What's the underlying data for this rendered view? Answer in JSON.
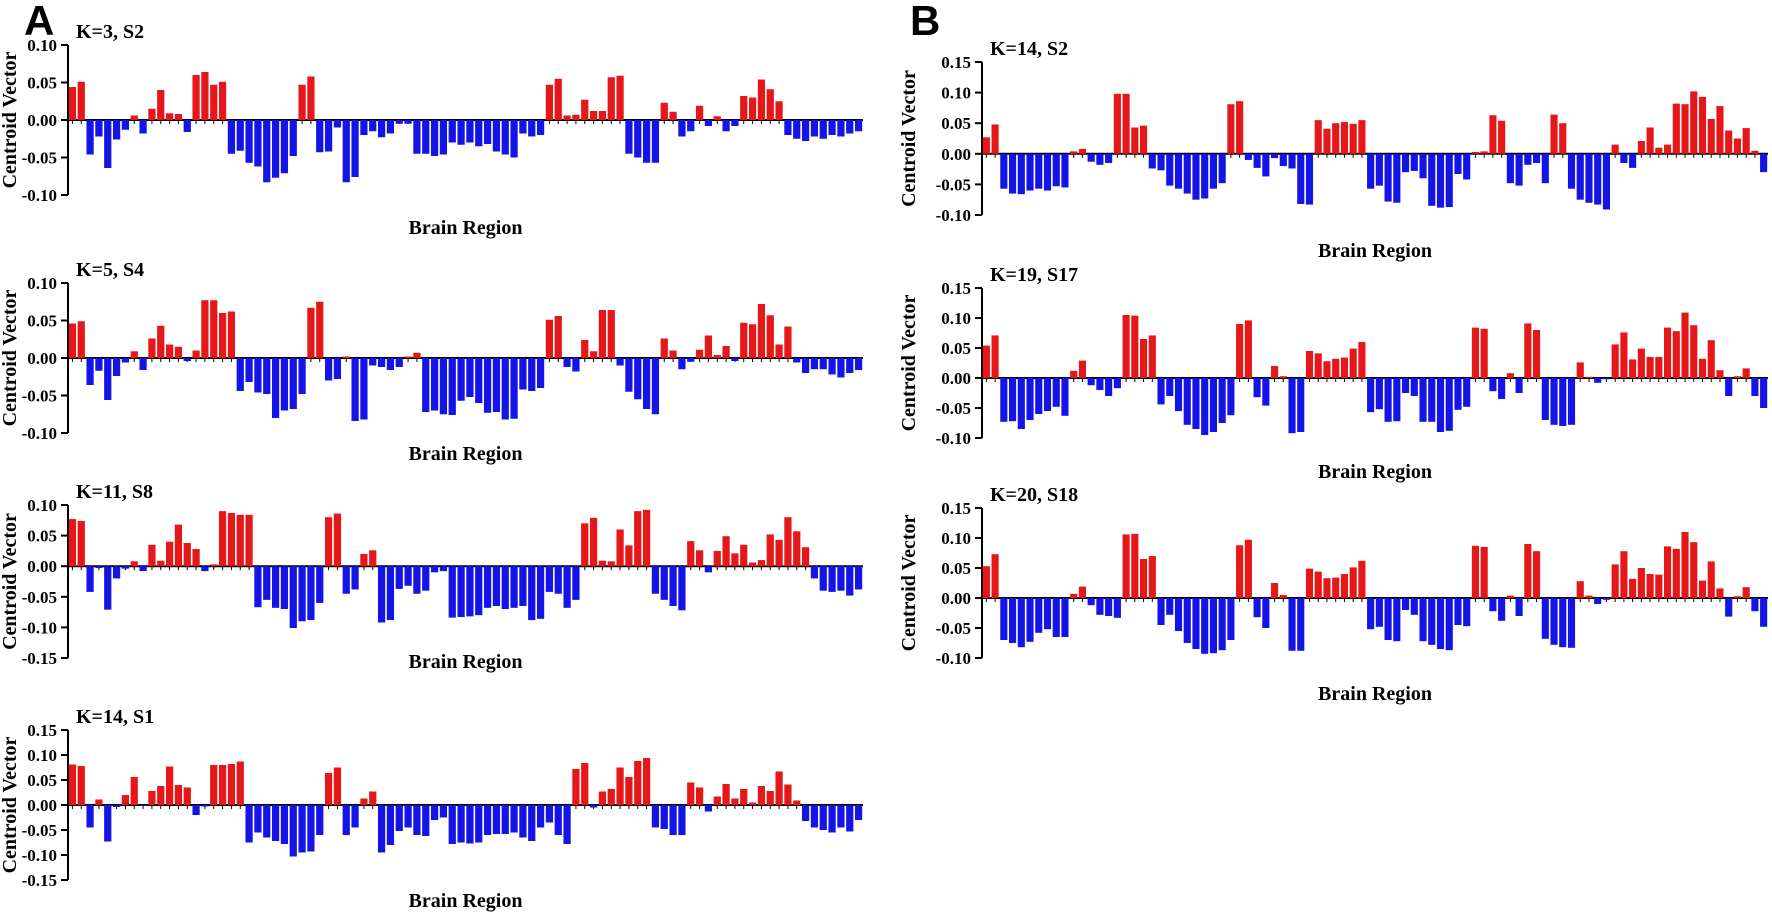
{
  "figure": {
    "panels": [
      {
        "label": "A"
      },
      {
        "label": "B"
      }
    ],
    "colors": {
      "positive_bar": "#e61719",
      "negative_bar": "#1414e6",
      "axis": "#000000",
      "background": "#ffffff"
    }
  },
  "chart_data": [
    {
      "type": "bar",
      "panel": "A",
      "title": "K=3, S2",
      "xlabel": "Brain Region",
      "ylabel": "Centroid Vector",
      "ylim": [
        -0.1,
        0.1
      ],
      "yticks": [
        0.1,
        0.05,
        0.0,
        -0.05,
        -0.1
      ],
      "n_regions": 90,
      "grid": false,
      "legend": false,
      "values": [
        0.044,
        0.051,
        -0.046,
        -0.022,
        -0.064,
        -0.026,
        -0.013,
        0.006,
        -0.018,
        0.015,
        0.04,
        0.009,
        0.008,
        -0.016,
        0.06,
        0.064,
        0.047,
        0.051,
        -0.045,
        -0.041,
        -0.057,
        -0.062,
        -0.083,
        -0.077,
        -0.071,
        -0.048,
        0.047,
        0.058,
        -0.043,
        -0.042,
        -0.01,
        -0.083,
        -0.076,
        -0.02,
        -0.015,
        -0.023,
        -0.018,
        -0.005,
        -0.005,
        -0.045,
        -0.045,
        -0.048,
        -0.046,
        -0.03,
        -0.033,
        -0.03,
        -0.035,
        -0.032,
        -0.042,
        -0.046,
        -0.05,
        -0.018,
        -0.022,
        -0.02,
        0.047,
        0.055,
        0.006,
        0.007,
        0.027,
        0.012,
        0.012,
        0.057,
        0.059,
        -0.045,
        -0.05,
        -0.057,
        -0.057,
        0.023,
        0.011,
        -0.022,
        -0.015,
        0.019,
        -0.008,
        0.005,
        -0.015,
        -0.008,
        0.032,
        0.03,
        0.054,
        0.041,
        0.025,
        -0.02,
        -0.025,
        -0.028,
        -0.022,
        -0.025,
        -0.02,
        -0.022,
        -0.018,
        -0.015
      ]
    },
    {
      "type": "bar",
      "panel": "A",
      "title": "K=5, S4",
      "xlabel": "Brain Region",
      "ylabel": "Centroid Vector",
      "ylim": [
        -0.1,
        0.1
      ],
      "yticks": [
        0.1,
        0.05,
        0.0,
        -0.05,
        -0.1
      ],
      "n_regions": 90,
      "grid": false,
      "legend": false,
      "values": [
        0.046,
        0.049,
        -0.036,
        -0.017,
        -0.056,
        -0.024,
        -0.006,
        0.009,
        -0.016,
        0.026,
        0.043,
        0.018,
        0.015,
        -0.004,
        0.01,
        0.077,
        0.077,
        0.06,
        0.062,
        -0.044,
        -0.032,
        -0.046,
        -0.048,
        -0.08,
        -0.07,
        -0.068,
        -0.048,
        0.067,
        0.075,
        -0.03,
        -0.028,
        0.002,
        -0.084,
        -0.082,
        -0.01,
        -0.012,
        -0.016,
        -0.012,
        0.002,
        0.007,
        -0.072,
        -0.07,
        -0.075,
        -0.076,
        -0.057,
        -0.052,
        -0.06,
        -0.073,
        -0.072,
        -0.082,
        -0.081,
        -0.042,
        -0.044,
        -0.04,
        0.051,
        0.056,
        -0.012,
        -0.018,
        0.024,
        0.009,
        0.064,
        0.064,
        -0.01,
        -0.045,
        -0.055,
        -0.068,
        -0.075,
        0.026,
        0.01,
        -0.015,
        -0.005,
        0.011,
        0.03,
        0.004,
        0.016,
        -0.004,
        0.047,
        0.045,
        0.072,
        0.057,
        0.018,
        0.042,
        -0.006,
        -0.02,
        -0.015,
        -0.015,
        -0.022,
        -0.026,
        -0.02,
        -0.016
      ]
    },
    {
      "type": "bar",
      "panel": "A",
      "title": "K=11, S8",
      "xlabel": "Brain Region",
      "ylabel": "Centroid Vector",
      "ylim": [
        -0.15,
        0.1
      ],
      "yticks": [
        0.1,
        0.05,
        0.0,
        -0.05,
        -0.1,
        -0.15
      ],
      "n_regions": 90,
      "grid": false,
      "legend": false,
      "values": [
        0.077,
        0.074,
        -0.042,
        -0.003,
        -0.071,
        -0.02,
        -0.004,
        0.008,
        -0.008,
        0.035,
        0.009,
        0.04,
        0.068,
        0.038,
        0.028,
        -0.008,
        0.003,
        0.09,
        0.087,
        0.084,
        0.084,
        -0.067,
        -0.055,
        -0.068,
        -0.07,
        -0.101,
        -0.09,
        -0.088,
        -0.06,
        0.08,
        0.086,
        -0.045,
        -0.038,
        0.02,
        0.026,
        -0.092,
        -0.088,
        -0.037,
        -0.032,
        -0.045,
        -0.04,
        -0.01,
        -0.008,
        -0.084,
        -0.083,
        -0.082,
        -0.08,
        -0.068,
        -0.065,
        -0.07,
        -0.068,
        -0.065,
        -0.088,
        -0.086,
        -0.042,
        -0.045,
        -0.068,
        -0.055,
        0.07,
        0.079,
        0.009,
        0.008,
        0.06,
        0.034,
        0.09,
        0.092,
        -0.045,
        -0.055,
        -0.065,
        -0.072,
        0.041,
        0.026,
        -0.01,
        0.025,
        0.049,
        0.021,
        0.035,
        0.006,
        0.01,
        0.052,
        0.043,
        0.08,
        0.057,
        0.031,
        -0.02,
        -0.04,
        -0.042,
        -0.04,
        -0.048,
        -0.038
      ]
    },
    {
      "type": "bar",
      "panel": "A",
      "title": "K=14, S1",
      "xlabel": "Brain Region",
      "ylabel": "Centroid Vector",
      "ylim": [
        -0.15,
        0.15
      ],
      "yticks": [
        0.15,
        0.1,
        0.05,
        0.0,
        -0.05,
        -0.1,
        -0.15
      ],
      "n_regions": 90,
      "grid": false,
      "legend": false,
      "values": [
        0.081,
        0.078,
        -0.045,
        0.011,
        -0.073,
        -0.004,
        0.02,
        0.056,
        -0.002,
        0.028,
        0.038,
        0.077,
        0.04,
        0.035,
        -0.02,
        -0.003,
        0.08,
        0.08,
        0.082,
        0.087,
        -0.075,
        -0.055,
        -0.065,
        -0.072,
        -0.078,
        -0.103,
        -0.095,
        -0.093,
        -0.06,
        0.064,
        0.075,
        -0.06,
        -0.045,
        0.013,
        0.027,
        -0.095,
        -0.08,
        -0.052,
        -0.045,
        -0.06,
        -0.062,
        -0.03,
        -0.025,
        -0.078,
        -0.075,
        -0.077,
        -0.075,
        -0.06,
        -0.058,
        -0.058,
        -0.055,
        -0.065,
        -0.072,
        -0.045,
        -0.035,
        -0.06,
        -0.078,
        0.072,
        0.084,
        -0.005,
        0.027,
        0.032,
        0.075,
        0.056,
        0.088,
        0.094,
        -0.045,
        -0.048,
        -0.06,
        -0.06,
        0.045,
        0.035,
        -0.013,
        0.017,
        0.042,
        0.013,
        0.032,
        0.005,
        0.038,
        0.028,
        0.067,
        0.041,
        0.009,
        -0.032,
        -0.045,
        -0.05,
        -0.055,
        -0.045,
        -0.053,
        -0.03
      ]
    },
    {
      "type": "bar",
      "panel": "B",
      "title": "K=14, S2",
      "xlabel": "Brain Region",
      "ylabel": "Centroid Vector",
      "ylim": [
        -0.1,
        0.15
      ],
      "yticks": [
        0.15,
        0.1,
        0.05,
        0.0,
        -0.05,
        -0.1
      ],
      "n_regions": 90,
      "grid": false,
      "legend": false,
      "values": [
        0.027,
        0.048,
        -0.057,
        -0.065,
        -0.066,
        -0.06,
        -0.057,
        -0.06,
        -0.053,
        -0.055,
        0.004,
        0.008,
        -0.013,
        -0.018,
        -0.015,
        0.098,
        0.098,
        0.043,
        0.046,
        -0.024,
        -0.027,
        -0.052,
        -0.057,
        -0.065,
        -0.075,
        -0.073,
        -0.057,
        -0.048,
        0.081,
        0.086,
        -0.01,
        -0.023,
        -0.037,
        -0.007,
        -0.02,
        -0.024,
        -0.082,
        -0.083,
        0.055,
        0.041,
        0.05,
        0.052,
        0.049,
        0.055,
        -0.057,
        -0.052,
        -0.078,
        -0.08,
        -0.03,
        -0.028,
        -0.04,
        -0.085,
        -0.088,
        -0.087,
        -0.033,
        -0.042,
        0.003,
        0.004,
        0.063,
        0.054,
        -0.048,
        -0.052,
        -0.018,
        -0.015,
        -0.048,
        0.064,
        0.05,
        -0.057,
        -0.075,
        -0.08,
        -0.083,
        -0.091,
        0.015,
        -0.015,
        -0.023,
        0.021,
        0.043,
        0.01,
        0.015,
        0.082,
        0.081,
        0.102,
        0.093,
        0.057,
        0.078,
        0.038,
        0.025,
        0.042,
        0.005,
        -0.03
      ]
    },
    {
      "type": "bar",
      "panel": "B",
      "title": "K=19, S17",
      "xlabel": "Brain Region",
      "ylabel": "Centroid Vector",
      "ylim": [
        -0.1,
        0.15
      ],
      "yticks": [
        0.15,
        0.1,
        0.05,
        0.0,
        -0.05,
        -0.1
      ],
      "n_regions": 90,
      "grid": false,
      "legend": false,
      "values": [
        0.054,
        0.071,
        -0.073,
        -0.072,
        -0.085,
        -0.07,
        -0.06,
        -0.055,
        -0.048,
        -0.063,
        0.012,
        0.029,
        -0.012,
        -0.02,
        -0.03,
        -0.017,
        0.105,
        0.104,
        0.065,
        0.071,
        -0.044,
        -0.03,
        -0.055,
        -0.078,
        -0.085,
        -0.095,
        -0.09,
        -0.075,
        -0.062,
        0.09,
        0.096,
        -0.032,
        -0.046,
        0.02,
        0.003,
        -0.092,
        -0.09,
        0.045,
        0.041,
        0.028,
        0.032,
        0.034,
        0.049,
        0.06,
        -0.057,
        -0.052,
        -0.073,
        -0.072,
        -0.025,
        -0.03,
        -0.073,
        -0.073,
        -0.09,
        -0.088,
        -0.053,
        -0.048,
        0.084,
        0.082,
        -0.022,
        -0.035,
        0.008,
        -0.025,
        0.091,
        0.08,
        -0.07,
        -0.078,
        -0.08,
        -0.078,
        0.026,
        0.002,
        -0.008,
        -0.002,
        0.056,
        0.076,
        0.031,
        0.049,
        0.035,
        0.035,
        0.084,
        0.078,
        0.109,
        0.088,
        0.032,
        0.063,
        0.013,
        -0.03,
        0.003,
        0.016,
        -0.03,
        -0.05
      ]
    },
    {
      "type": "bar",
      "panel": "B",
      "title": "K=20, S18",
      "xlabel": "Brain Region",
      "ylabel": "Centroid Vector",
      "ylim": [
        -0.1,
        0.15
      ],
      "yticks": [
        0.15,
        0.1,
        0.05,
        0.0,
        -0.05,
        -0.1
      ],
      "n_regions": 90,
      "grid": false,
      "legend": false,
      "values": [
        0.053,
        0.073,
        -0.07,
        -0.075,
        -0.082,
        -0.073,
        -0.058,
        -0.052,
        -0.065,
        -0.065,
        0.007,
        0.019,
        -0.012,
        -0.028,
        -0.03,
        -0.033,
        0.106,
        0.107,
        0.065,
        0.07,
        -0.045,
        -0.028,
        -0.055,
        -0.075,
        -0.085,
        -0.093,
        -0.092,
        -0.087,
        -0.07,
        0.088,
        0.097,
        -0.032,
        -0.05,
        0.025,
        0.005,
        -0.088,
        -0.088,
        0.049,
        0.044,
        0.033,
        0.034,
        0.04,
        0.051,
        0.062,
        -0.052,
        -0.048,
        -0.07,
        -0.072,
        -0.02,
        -0.028,
        -0.072,
        -0.078,
        -0.085,
        -0.087,
        -0.045,
        -0.047,
        0.087,
        0.085,
        -0.022,
        -0.038,
        0.004,
        -0.03,
        0.09,
        0.078,
        -0.068,
        -0.078,
        -0.082,
        -0.083,
        0.028,
        0.004,
        -0.01,
        -0.003,
        0.056,
        0.078,
        0.032,
        0.05,
        0.04,
        0.039,
        0.086,
        0.082,
        0.11,
        0.093,
        0.029,
        0.061,
        0.016,
        -0.031,
        0.003,
        0.018,
        -0.022,
        -0.048
      ]
    }
  ]
}
